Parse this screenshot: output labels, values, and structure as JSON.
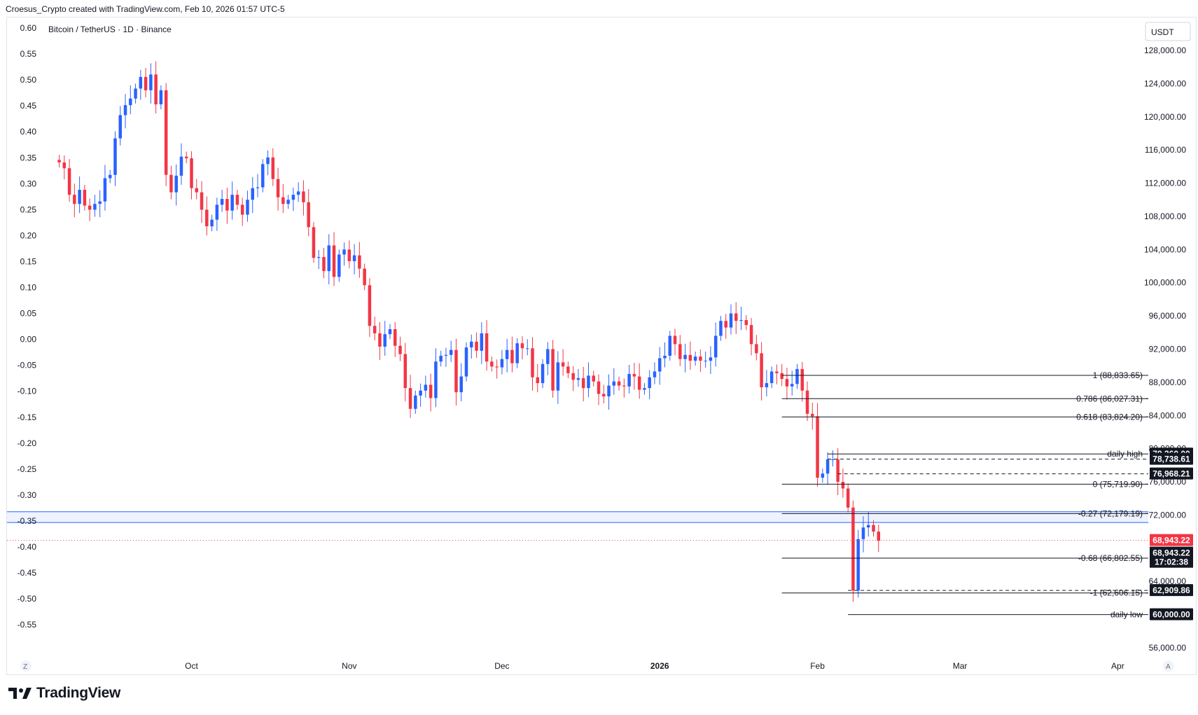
{
  "header": {
    "text": "Croesus_Crypto created with TradingView.com, Feb 10, 2026 01:57 UTC-5"
  },
  "symbol": {
    "text": "Bitcoin / TetherUS · 1D · Binance"
  },
  "currency_button": {
    "label": "USDT"
  },
  "footer": {
    "brand": "TradingView",
    "corner_left": "Z",
    "corner_right": "A"
  },
  "colors": {
    "up": "#2962ff",
    "down": "#f23645",
    "tag_dark": "#131722",
    "price_tag": "#f23645",
    "zone": "#2962ff"
  },
  "icons": [
    "tradingview-logo-icon"
  ],
  "chart_data": {
    "type": "candlestick",
    "title": "Bitcoin / TetherUS · 1D · Binance",
    "price_axis": {
      "ticks": [
        "128,000.00",
        "124,000.00",
        "120,000.00",
        "116,000.00",
        "112,000.00",
        "108,000.00",
        "104,000.00",
        "100,000.00",
        "96,000.00",
        "92,000.00",
        "88,000.00",
        "84,000.00",
        "80,000.00",
        "76,000.00",
        "72,000.00",
        "64,000.00",
        "56,000.00"
      ],
      "range": [
        54000,
        134000
      ]
    },
    "left_axis": {
      "ticks": [
        "0.60",
        "0.55",
        "0.50",
        "0.45",
        "0.40",
        "0.35",
        "0.30",
        "0.25",
        "0.20",
        "0.15",
        "0.10",
        "0.05",
        "0.00",
        "-0.05",
        "-0.10",
        "-0.15",
        "-0.20",
        "-0.25",
        "-0.30",
        "-0.35",
        "-0.40",
        "-0.45",
        "-0.50",
        "-0.55"
      ]
    },
    "time_axis": {
      "labels": [
        {
          "text": "Oct",
          "day": 26,
          "bold": false
        },
        {
          "text": "Nov",
          "day": 57,
          "bold": false
        },
        {
          "text": "Dec",
          "day": 87,
          "bold": false
        },
        {
          "text": "2026",
          "day": 118,
          "bold": true
        },
        {
          "text": "Feb",
          "day": 149,
          "bold": false
        },
        {
          "text": "Mar",
          "day": 177,
          "bold": false
        },
        {
          "text": "Apr",
          "day": 208,
          "bold": false
        }
      ],
      "days_range": [
        -2,
        214
      ]
    },
    "candles": {
      "start_day": 0,
      "open": [
        114800,
        114500,
        113800,
        110600,
        109500,
        111200,
        109300,
        108800,
        109500,
        109800,
        112600,
        113000,
        117400,
        120200,
        121400,
        122200,
        123400,
        124800,
        123200,
        125100,
        121500,
        123200,
        113000,
        110900,
        112900,
        115200,
        115000,
        111400,
        110900,
        108800,
        106800,
        107600,
        109400,
        110100,
        108700,
        110600,
        109400,
        108200,
        110000,
        111400,
        111500,
        114300,
        115100,
        112500,
        110300,
        109500,
        110000,
        110600,
        111000,
        109700,
        106700,
        103000,
        103100,
        101400,
        104500,
        100700,
        103400,
        104000,
        102600,
        103300,
        101700,
        99700,
        94800,
        93900,
        92300,
        93800,
        94400,
        92400,
        91400,
        87300,
        84800,
        86400,
        87000,
        87700,
        86100,
        90500,
        91200,
        91300,
        91900,
        86800,
        88700,
        92200,
        92900,
        91800,
        93900,
        90500,
        89900,
        89800,
        90800,
        91900,
        90300,
        92700,
        92100,
        92100,
        88600,
        87900,
        90200,
        92000,
        87000,
        90400,
        89900,
        89100,
        88300,
        88500,
        87300,
        88800,
        88100,
        86600,
        86300,
        87600,
        88100,
        87600,
        87500,
        89000,
        88700,
        87100,
        87300,
        88600,
        89300,
        90900,
        91200,
        93600,
        92600,
        90800,
        91300,
        90600,
        91100,
        90600,
        90600,
        91000,
        93600,
        95400,
        94600,
        96300,
        95400,
        95500,
        94900,
        92600,
        91500,
        87400,
        87900,
        89300,
        89100,
        88400,
        87500,
        87800,
        89600,
        87000,
        84200,
        83900,
        76500,
        77000,
        78700,
        78700,
        76000,
        75200,
        72900,
        62900,
        69100,
        70500,
        70800,
        70000
      ],
      "close": [
        114500,
        113800,
        110600,
        109500,
        111200,
        109300,
        108800,
        109500,
        109800,
        112600,
        113000,
        117400,
        120200,
        121400,
        122200,
        123400,
        124800,
        123200,
        125100,
        121500,
        123200,
        113000,
        110900,
        112900,
        115200,
        115000,
        111400,
        110900,
        108800,
        106800,
        107600,
        109400,
        110100,
        108700,
        110600,
        109400,
        108200,
        110000,
        111400,
        111500,
        114300,
        115100,
        112500,
        110300,
        109500,
        110000,
        110600,
        111000,
        109700,
        106700,
        103000,
        103100,
        101400,
        104500,
        100700,
        103400,
        104000,
        102600,
        103300,
        101700,
        99700,
        94800,
        93900,
        92300,
        93800,
        94400,
        92400,
        91400,
        87300,
        84800,
        86400,
        87000,
        87700,
        86100,
        90500,
        91200,
        91300,
        91900,
        86800,
        88700,
        92200,
        92900,
        91800,
        93900,
        90500,
        89900,
        89800,
        90800,
        91900,
        90300,
        92700,
        92100,
        92100,
        88600,
        87900,
        90200,
        92000,
        87000,
        90400,
        89900,
        89100,
        88300,
        88500,
        87300,
        88800,
        88100,
        86600,
        86300,
        87600,
        88100,
        87600,
        87500,
        89000,
        88700,
        87100,
        87300,
        88600,
        89300,
        90900,
        91200,
        93600,
        92600,
        90800,
        91300,
        90600,
        91100,
        90600,
        90600,
        91000,
        93600,
        95400,
        94600,
        96300,
        95400,
        95500,
        94900,
        92600,
        91500,
        87400,
        87900,
        89300,
        89100,
        88400,
        87500,
        87800,
        89600,
        87000,
        84200,
        83900,
        76500,
        77000,
        78700,
        78700,
        76000,
        75200,
        72900,
        62900,
        69100,
        70500,
        70800,
        70000,
        68900
      ]
    },
    "fib_levels": [
      {
        "label": "1 (88,833.65)",
        "price": 88834
      },
      {
        "label": "0.786 (86,027.31)",
        "price": 86027
      },
      {
        "label": "0.618 (83,824.20)",
        "price": 83824
      },
      {
        "label": "0 (75,719.90)",
        "price": 75720
      },
      {
        "label": "-0.27 (72,179.19)",
        "price": 72179
      },
      {
        "label": "-0.68 (66,802.55)",
        "price": 66803
      },
      {
        "label": "-1 (62,606.15)",
        "price": 62606
      }
    ],
    "fib_start_day": 142,
    "horizontal_levels": [
      {
        "label": "daily high",
        "price": 79360,
        "tag": "79,360.00",
        "start_day": 151
      },
      {
        "label": "daily low",
        "price": 60000,
        "tag": "60,000.00",
        "start_day": 155
      }
    ],
    "dashed_levels": [
      {
        "price": 78739,
        "tag": "78,738.61",
        "start_day": 151
      },
      {
        "price": 76968,
        "tag": "76,968.21",
        "start_day": 153
      },
      {
        "price": 62910,
        "tag": "62,909.86",
        "start_day": 155
      }
    ],
    "zone": {
      "from": 71100,
      "to": 72400
    },
    "current_price": {
      "price": 68943,
      "tag": "68,943.22",
      "sub_price": "68,943.22",
      "countdown": "17:02:38"
    }
  }
}
